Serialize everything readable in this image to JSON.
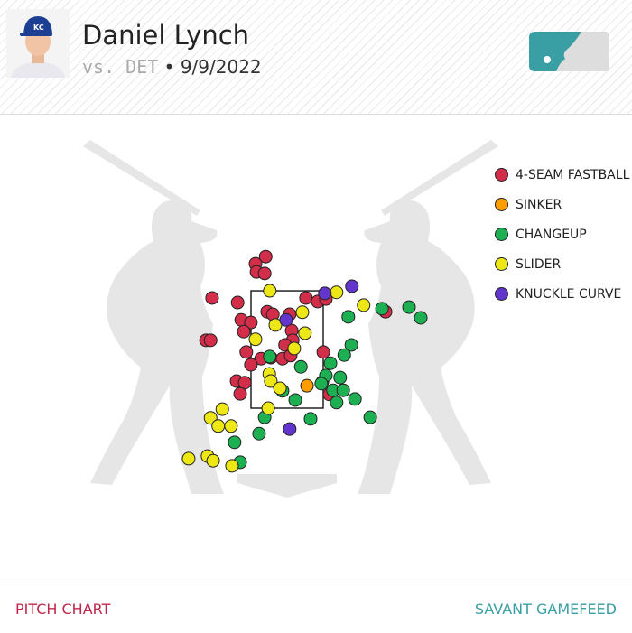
{
  "header": {
    "pitcher": "Daniel Lynch",
    "opponent": "vs. DET",
    "separator": "•",
    "date": "9/9/2022"
  },
  "footer": {
    "left": "PITCH CHART",
    "right": "SAVANT GAMEFEED"
  },
  "colors": {
    "accent_left": "#c0264a",
    "accent_right": "#3a9ea5"
  },
  "chart_data": {
    "type": "scatter",
    "strike_zone": {
      "x": [
        -0.708,
        0.708
      ],
      "z": [
        1.5,
        3.8
      ]
    },
    "legend": [
      {
        "name": "4-SEAM FASTBALL",
        "color": "#d22d49"
      },
      {
        "name": "SINKER",
        "color": "#fe9d00"
      },
      {
        "name": "CHANGEUP",
        "color": "#1db053"
      },
      {
        "name": "SLIDER",
        "color": "#eee716"
      },
      {
        "name": "KNUCKLE CURVE",
        "color": "#6236cd"
      }
    ],
    "series": [
      {
        "name": "4-SEAM FASTBALL",
        "points": [
          [
            -0.42,
            4.47
          ],
          [
            -0.62,
            4.33
          ],
          [
            -0.6,
            4.17
          ],
          [
            -0.44,
            4.14
          ],
          [
            -1.47,
            3.66
          ],
          [
            -0.97,
            3.57
          ],
          [
            -1.59,
            2.83
          ],
          [
            -1.5,
            2.83
          ],
          [
            -0.9,
            3.23
          ],
          [
            -0.71,
            3.18
          ],
          [
            -0.85,
            3.0
          ],
          [
            -0.39,
            3.39
          ],
          [
            -0.28,
            3.34
          ],
          [
            0.37,
            3.66
          ],
          [
            0.6,
            3.59
          ],
          [
            0.76,
            3.64
          ],
          [
            0.05,
            3.34
          ],
          [
            0.09,
            3.02
          ],
          [
            0.11,
            2.83
          ],
          [
            -0.04,
            2.74
          ],
          [
            1.93,
            3.39
          ],
          [
            -0.8,
            2.6
          ],
          [
            -0.51,
            2.47
          ],
          [
            -0.32,
            2.49
          ],
          [
            -0.09,
            2.47
          ],
          [
            0.07,
            2.53
          ],
          [
            -0.71,
            2.35
          ],
          [
            -0.99,
            2.03
          ],
          [
            -0.83,
            2.0
          ],
          [
            -0.92,
            1.78
          ],
          [
            0.71,
            2.6
          ],
          [
            0.69,
            2.01
          ],
          [
            0.83,
            1.77
          ]
        ]
      },
      {
        "name": "SINKER",
        "points": [
          [
            0.39,
            1.94
          ]
        ]
      },
      {
        "name": "CHANGEUP",
        "points": [
          [
            1.2,
            3.29
          ],
          [
            1.86,
            3.45
          ],
          [
            2.39,
            3.48
          ],
          [
            2.62,
            3.27
          ],
          [
            1.26,
            2.74
          ],
          [
            1.12,
            2.54
          ],
          [
            -0.34,
            2.51
          ],
          [
            0.27,
            2.31
          ],
          [
            0.85,
            2.38
          ],
          [
            0.76,
            2.14
          ],
          [
            1.04,
            2.1
          ],
          [
            0.67,
            1.98
          ],
          [
            0.9,
            1.85
          ],
          [
            1.1,
            1.85
          ],
          [
            0.97,
            1.61
          ],
          [
            1.33,
            1.68
          ],
          [
            1.63,
            1.32
          ],
          [
            0.46,
            1.29
          ],
          [
            -0.44,
            1.32
          ],
          [
            -0.09,
            1.84
          ],
          [
            0.16,
            1.66
          ],
          [
            -0.55,
            1.0
          ],
          [
            -1.03,
            0.83
          ],
          [
            -0.92,
            0.44
          ]
        ]
      },
      {
        "name": "SLIDER",
        "points": [
          [
            -0.34,
            3.8
          ],
          [
            0.97,
            3.77
          ],
          [
            1.5,
            3.52
          ],
          [
            0.3,
            3.38
          ],
          [
            -0.23,
            3.13
          ],
          [
            -0.62,
            2.85
          ],
          [
            0.35,
            2.97
          ],
          [
            0.14,
            2.67
          ],
          [
            -0.35,
            2.17
          ],
          [
            -0.32,
            2.03
          ],
          [
            -0.14,
            1.89
          ],
          [
            -0.37,
            1.5
          ],
          [
            -1.27,
            1.48
          ],
          [
            -1.5,
            1.31
          ],
          [
            -1.35,
            1.15
          ],
          [
            -1.1,
            1.15
          ],
          [
            -1.93,
            0.51
          ],
          [
            -1.56,
            0.56
          ],
          [
            -1.45,
            0.47
          ],
          [
            -1.08,
            0.37
          ]
        ]
      },
      {
        "name": "KNUCKLE CURVE",
        "points": [
          [
            1.27,
            3.89
          ],
          [
            0.74,
            3.75
          ],
          [
            -0.02,
            3.23
          ],
          [
            0.05,
            1.09
          ]
        ]
      }
    ]
  }
}
